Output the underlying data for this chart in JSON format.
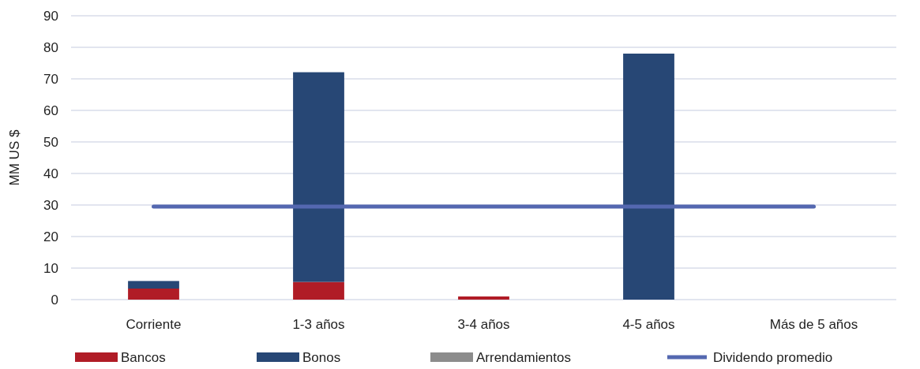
{
  "chart_data": {
    "type": "bar",
    "stacked": true,
    "ylabel": "MM US $",
    "categories": [
      "Corriente",
      "1-3 años",
      "3-4 años",
      "4-5 años",
      "Más de 5 años"
    ],
    "series": [
      {
        "name": "Bancos",
        "color": "#b01c26",
        "values": [
          3.5,
          5.6,
          1.0,
          0,
          0
        ]
      },
      {
        "name": "Bonos",
        "color": "#274775",
        "values": [
          2.4,
          66.5,
          0,
          78,
          0
        ]
      },
      {
        "name": "Arrendamientos",
        "color": "#8c8c8c",
        "values": [
          0,
          0,
          0,
          0,
          0
        ]
      },
      {
        "name": "Dividendo promedio",
        "type": "line",
        "color": "#5468b0",
        "values": [
          29.5,
          29.5,
          29.5,
          29.5,
          29.5
        ]
      }
    ],
    "ylim": [
      0,
      90
    ],
    "yticks": [
      0,
      10,
      20,
      30,
      40,
      50,
      60,
      70,
      80,
      90
    ],
    "grid": "y",
    "legend": "bottom"
  }
}
